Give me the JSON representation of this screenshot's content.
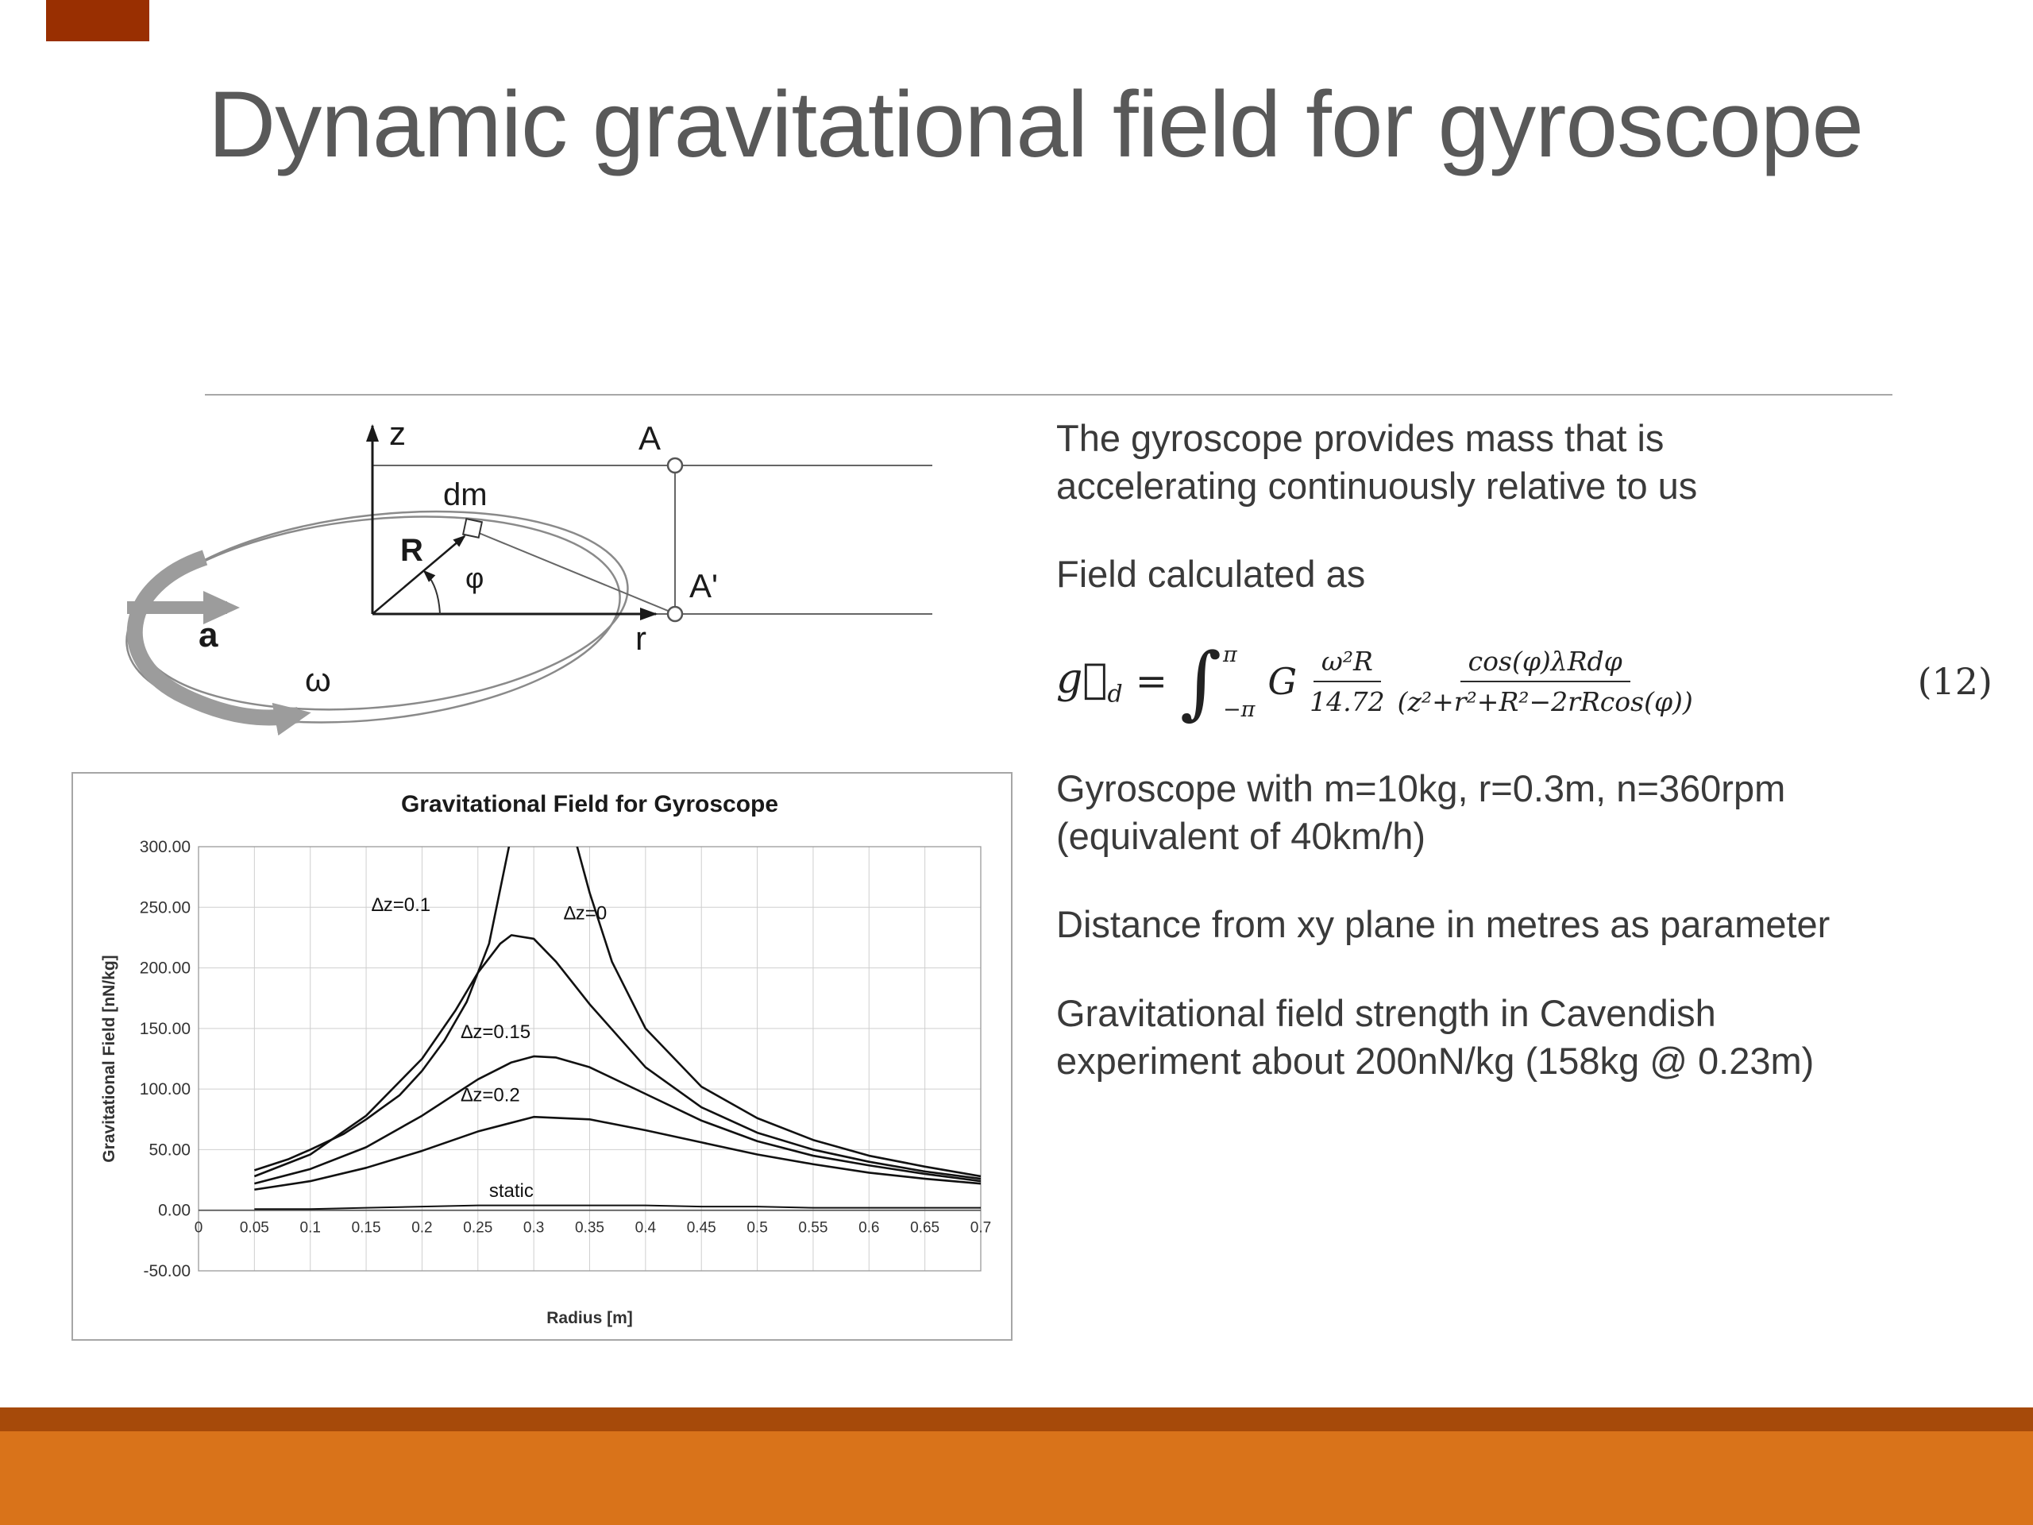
{
  "slide": {
    "title": "Dynamic gravitational field for gyroscope",
    "colors": {
      "corner": "#992F01",
      "band_strip": "#A64A0A",
      "band": "#D9731A",
      "title": "#595959",
      "text": "#3A3A3A"
    }
  },
  "diagram": {
    "labels": {
      "z": "z",
      "dm": "dm",
      "R": "R",
      "phi": "φ",
      "A": "A",
      "Aprime": "A'",
      "a": "a",
      "r": "r",
      "omega": "ω"
    }
  },
  "right_column": {
    "para1": "The gyroscope provides mass that is accelerating continuously relative to us",
    "para2": "Field calculated as",
    "formula": {
      "g": "g⃗",
      "g_sub": "d",
      "eq": "=",
      "int": "∫",
      "up": "π",
      "lo": "−π",
      "G": "G",
      "f1n": "ω²R",
      "f1d": "14.72",
      "f2n": "cos(φ)λRdφ",
      "f2d": "(z²+r²+R²−2rRcos(φ))",
      "num": "(12)"
    },
    "para3": "Gyroscope with m=10kg, r=0.3m, n=360rpm (equivalent of 40km/h)",
    "para4": "Distance from xy plane in metres as parameter",
    "para5": "Gravitational field strength in Cavendish experiment about 200nN/kg (158kg @ 0.23m)"
  },
  "chart_data": {
    "type": "line",
    "title": "Gravitational Field for Gyroscope",
    "xlabel": "Radius [m]",
    "ylabel": "Gravitational Field [nN/kg]",
    "xlim": [
      0,
      0.7
    ],
    "ylim": [
      -50,
      300
    ],
    "grid": true,
    "legend": "none (inline curve labels)",
    "x_ticks": {
      "values": [
        0,
        0.05,
        0.1,
        0.15,
        0.2,
        0.25,
        0.3,
        0.35,
        0.4,
        0.45,
        0.5,
        0.55,
        0.6,
        0.65,
        0.7
      ],
      "labels": [
        "0",
        "0.05",
        "0.1",
        "0.15",
        "0.2",
        "0.25",
        "0.3",
        "0.35",
        "0.4",
        "0.45",
        "0.5",
        "0.55",
        "0.6",
        "0.65",
        "0.7"
      ]
    },
    "y_ticks": {
      "values": [
        300,
        250,
        200,
        150,
        100,
        50,
        0,
        -50
      ],
      "labels": [
        "300.00",
        "250.00",
        "200.00",
        "150.00",
        "100.00",
        "50.00",
        "0.00",
        "-50.00"
      ]
    },
    "series": [
      {
        "name": "∆z=0",
        "x": [
          0.05,
          0.08,
          0.1,
          0.13,
          0.15,
          0.18,
          0.2,
          0.22,
          0.24,
          0.26,
          0.28,
          0.29,
          0.3,
          0.31,
          0.32,
          0.33,
          0.35,
          0.37,
          0.4,
          0.45,
          0.5,
          0.55,
          0.6,
          0.65,
          0.7
        ],
        "y": [
          33,
          42,
          50,
          63,
          75,
          95,
          115,
          140,
          172,
          220,
          310,
          420,
          650,
          640,
          420,
          330,
          262,
          205,
          150,
          102,
          76,
          58,
          45,
          36,
          28
        ]
      },
      {
        "name": "∆z=0.1",
        "x": [
          0.05,
          0.1,
          0.15,
          0.2,
          0.23,
          0.25,
          0.27,
          0.28,
          0.3,
          0.32,
          0.35,
          0.4,
          0.45,
          0.5,
          0.55,
          0.6,
          0.65,
          0.7
        ],
        "y": [
          28,
          46,
          78,
          125,
          165,
          196,
          220,
          227,
          224,
          205,
          170,
          118,
          85,
          64,
          50,
          40,
          32,
          26
        ]
      },
      {
        "name": "∆z=0.15",
        "x": [
          0.05,
          0.1,
          0.15,
          0.2,
          0.25,
          0.28,
          0.3,
          0.32,
          0.35,
          0.4,
          0.45,
          0.5,
          0.55,
          0.6,
          0.65,
          0.7
        ],
        "y": [
          22,
          34,
          52,
          78,
          108,
          122,
          127,
          126,
          118,
          96,
          74,
          57,
          45,
          37,
          30,
          24
        ]
      },
      {
        "name": "∆z=0.2",
        "x": [
          0.05,
          0.1,
          0.15,
          0.2,
          0.25,
          0.3,
          0.35,
          0.4,
          0.45,
          0.5,
          0.55,
          0.6,
          0.65,
          0.7
        ],
        "y": [
          17,
          24,
          35,
          49,
          65,
          77,
          75,
          66,
          56,
          46,
          38,
          31,
          26,
          22
        ]
      },
      {
        "name": "static",
        "x": [
          0.05,
          0.1,
          0.15,
          0.2,
          0.25,
          0.3,
          0.35,
          0.4,
          0.45,
          0.5,
          0.55,
          0.6,
          0.65,
          0.7
        ],
        "y": [
          1,
          1,
          2,
          3,
          4,
          4,
          4,
          4,
          3,
          3,
          2,
          2,
          2,
          2
        ]
      }
    ],
    "annotations": [
      {
        "text": "∆z=0.1",
        "x": 0.155,
        "y": 247
      },
      {
        "text": "∆z=0",
        "x": 0.327,
        "y": 240
      },
      {
        "text": "∆z=0.15",
        "x": 0.235,
        "y": 142
      },
      {
        "text": "∆z=0.2",
        "x": 0.235,
        "y": 90
      },
      {
        "text": "static",
        "x": 0.26,
        "y": 11
      }
    ]
  }
}
